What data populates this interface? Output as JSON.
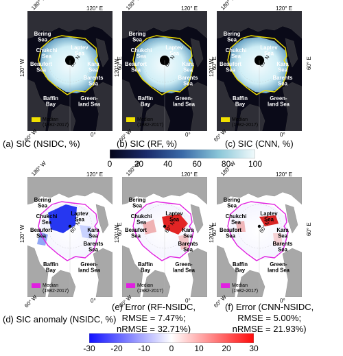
{
  "top_row": {
    "captions": [
      "(a) SIC (NSIDC, %)",
      "(b) SIC (RF, %)",
      "(c) SIC (CNN, %)"
    ],
    "colorbar_ticks": [
      "0",
      "20",
      "40",
      "60",
      "80",
      "100"
    ],
    "legend": [
      "Median",
      "(1982-2017)"
    ],
    "median_color": "#f0e000"
  },
  "bottom_row": {
    "captions": [
      [
        "(d) SIC anomaly (NSIDC, %)"
      ],
      [
        "(e) Error (RF-NSIDC,",
        "RMSE = 7.47%;",
        "nRMSE = 32.71%)"
      ],
      [
        "(f) Error (CNN-NSIDC,",
        "RMSE = 5.00%;",
        "nRMSE = 21.93%)"
      ]
    ],
    "colorbar_ticks": [
      "-30",
      "-20",
      "-10",
      "0",
      "10",
      "20",
      "30"
    ],
    "legend": [
      "Median",
      "(1982-2017)"
    ],
    "median_color": "#e020e0"
  },
  "map_labels": {
    "bering": [
      "Bering",
      "Sea"
    ],
    "chukchi": [
      "Chukchi",
      "Sea"
    ],
    "laptev": [
      "Laptev",
      "Sea"
    ],
    "beaufort": [
      "Beaufort",
      "Sea"
    ],
    "kara": [
      "Kara",
      "Sea"
    ],
    "barents": [
      "Barents",
      "Sea"
    ],
    "baffin": [
      "Baffin",
      "Bay"
    ],
    "greenland": [
      "Green-",
      "land Sea"
    ],
    "lon_180": "180° W",
    "lon_120e": "120° E",
    "lon_120w": "120° W",
    "lon_60e": "60° E",
    "lon_60w": "60° W",
    "lon_0": "0°",
    "lat_70": "70° N",
    "lat_80": "80° N"
  }
}
